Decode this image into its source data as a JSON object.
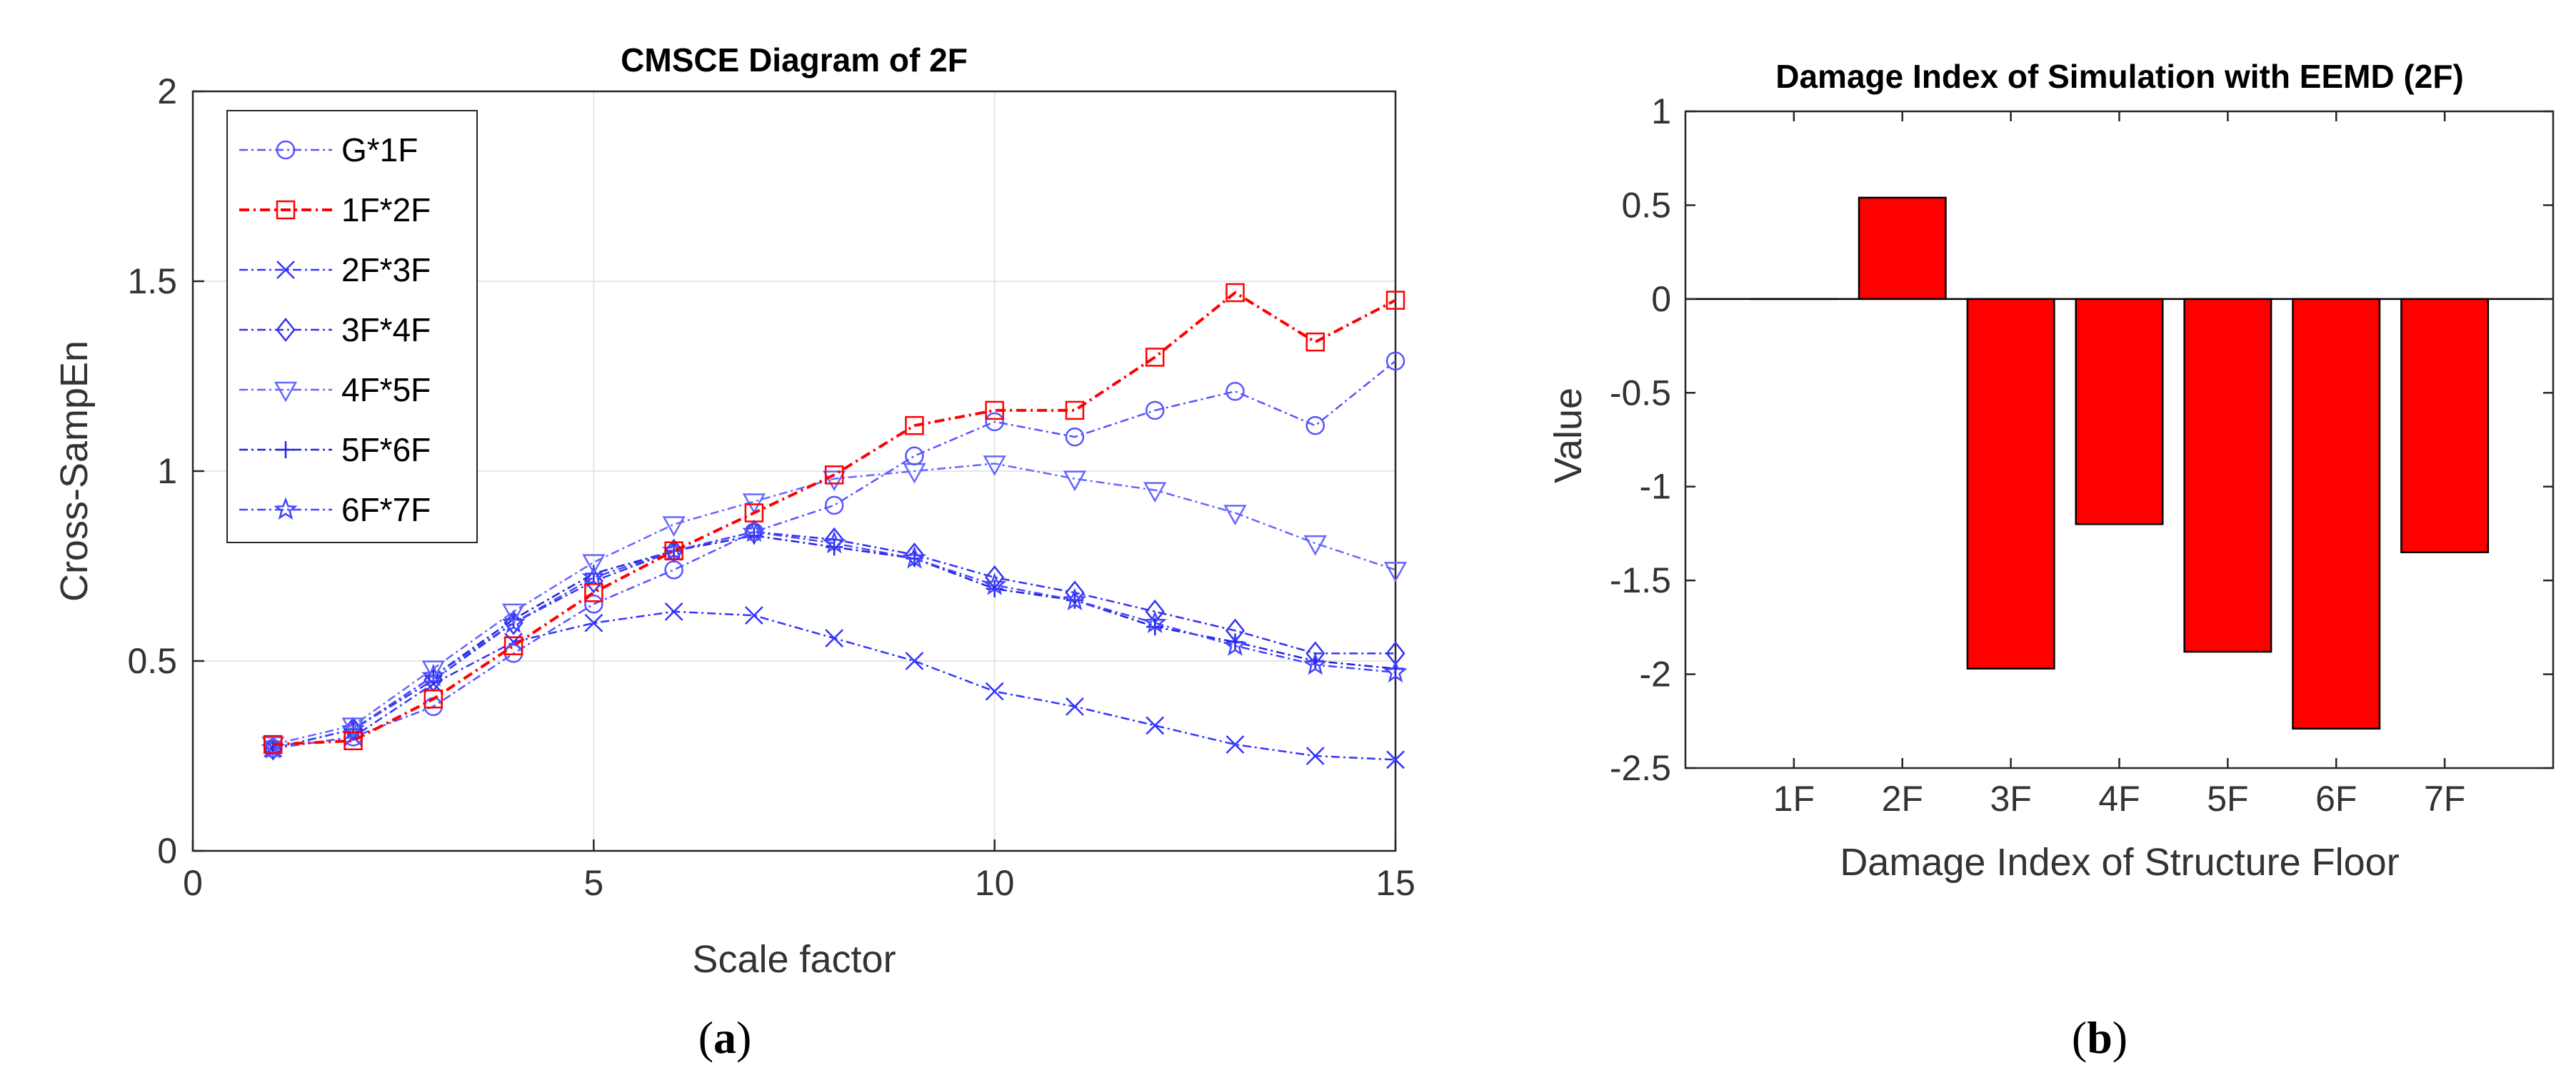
{
  "chart_data": [
    {
      "type": "line",
      "title": "CMSCE Diagram of 2F",
      "xlabel": "Scale factor",
      "ylabel": "Cross-SampEn",
      "xlim": [
        0,
        15
      ],
      "ylim": [
        0,
        2
      ],
      "xticks": [
        "0",
        "5",
        "10",
        "15"
      ],
      "yticks": [
        "0",
        "0.5",
        "1",
        "1.5",
        "2"
      ],
      "grid": true,
      "legend_position": "top-left",
      "caption_label": "a",
      "x": [
        1,
        2,
        3,
        4,
        5,
        6,
        7,
        8,
        9,
        10,
        11,
        12,
        13,
        14,
        15
      ],
      "series": [
        {
          "name": "G*1F",
          "marker": "circle",
          "color": "#5555ff",
          "values": [
            0.27,
            0.3,
            0.38,
            0.52,
            0.65,
            0.74,
            0.84,
            0.91,
            1.04,
            1.13,
            1.09,
            1.16,
            1.21,
            1.12,
            1.29
          ]
        },
        {
          "name": "1F*2F",
          "marker": "square",
          "color": "#ff0000",
          "values": [
            0.28,
            0.29,
            0.4,
            0.54,
            0.68,
            0.79,
            0.89,
            0.99,
            1.12,
            1.16,
            1.16,
            1.3,
            1.47,
            1.34,
            1.45
          ]
        },
        {
          "name": "2F*3F",
          "marker": "x",
          "color": "#3333ff",
          "values": [
            0.27,
            0.3,
            0.44,
            0.55,
            0.6,
            0.63,
            0.62,
            0.56,
            0.5,
            0.42,
            0.38,
            0.33,
            0.28,
            0.25,
            0.24
          ]
        },
        {
          "name": "3F*4F",
          "marker": "diamond",
          "color": "#3333ee",
          "values": [
            0.27,
            0.32,
            0.45,
            0.6,
            0.71,
            0.79,
            0.84,
            0.82,
            0.78,
            0.72,
            0.68,
            0.63,
            0.58,
            0.52,
            0.52
          ]
        },
        {
          "name": "4F*5F",
          "marker": "triangle-down",
          "color": "#6666ff",
          "values": [
            0.28,
            0.33,
            0.48,
            0.63,
            0.76,
            0.86,
            0.92,
            0.98,
            1.0,
            1.02,
            0.98,
            0.95,
            0.89,
            0.81,
            0.74
          ]
        },
        {
          "name": "5F*6F",
          "marker": "plus",
          "color": "#2222dd",
          "values": [
            0.27,
            0.32,
            0.46,
            0.61,
            0.73,
            0.79,
            0.83,
            0.8,
            0.77,
            0.69,
            0.66,
            0.59,
            0.55,
            0.5,
            0.48
          ]
        },
        {
          "name": "6F*7F",
          "marker": "star",
          "color": "#4444ff",
          "values": [
            0.27,
            0.32,
            0.46,
            0.6,
            0.72,
            0.79,
            0.84,
            0.81,
            0.77,
            0.7,
            0.66,
            0.6,
            0.54,
            0.49,
            0.47
          ]
        }
      ]
    },
    {
      "type": "bar",
      "title": "Damage Index of Simulation with EEMD (2F)",
      "xlabel": "Damage Index of Structure Floor",
      "ylabel": "Value",
      "categories": [
        "1F",
        "2F",
        "3F",
        "4F",
        "5F",
        "6F",
        "7F"
      ],
      "values": [
        0.0,
        0.54,
        -1.97,
        -1.2,
        -1.88,
        -2.29,
        -1.35
      ],
      "ylim": [
        -2.5,
        1
      ],
      "yticks": [
        "-2.5",
        "-2",
        "-1.5",
        "-1",
        "-0.5",
        "0",
        "0.5",
        "1"
      ],
      "grid": false,
      "bar_color": "#ff0000",
      "caption_label": "b"
    }
  ]
}
